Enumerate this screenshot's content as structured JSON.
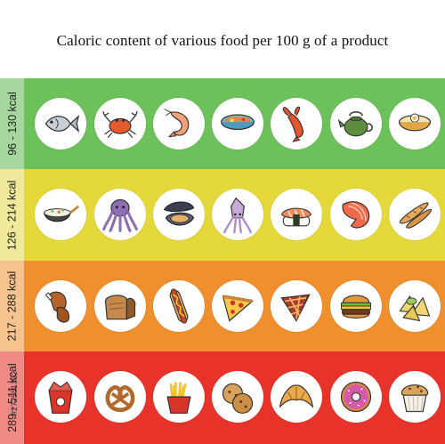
{
  "title": "Caloric content of various food per 100 g of a product",
  "stock_id": "#272581332",
  "bands": [
    {
      "label": "96 - 130 kcal",
      "main_color": "#6cc15a",
      "side_color": "#a6d79e",
      "items": [
        {
          "name": "fish",
          "icon": "fish-icon"
        },
        {
          "name": "crab",
          "icon": "crab-icon"
        },
        {
          "name": "shrimp",
          "icon": "shrimp-icon"
        },
        {
          "name": "soup",
          "icon": "soup-icon"
        },
        {
          "name": "lobster",
          "icon": "lobster-icon"
        },
        {
          "name": "teapot",
          "icon": "teapot-icon"
        },
        {
          "name": "porridge",
          "icon": "porridge-icon"
        }
      ]
    },
    {
      "label": "126 - 214 kcal",
      "main_color": "#e5d83b",
      "side_color": "#f1e99a",
      "items": [
        {
          "name": "wok",
          "icon": "wok-icon"
        },
        {
          "name": "octopus",
          "icon": "octopus-icon"
        },
        {
          "name": "mussel",
          "icon": "mussel-icon"
        },
        {
          "name": "squid",
          "icon": "squid-icon"
        },
        {
          "name": "sushi",
          "icon": "sushi-icon"
        },
        {
          "name": "salmon",
          "icon": "salmon-icon"
        },
        {
          "name": "baguette",
          "icon": "baguette-icon"
        }
      ]
    },
    {
      "label": "217 - 288 kcal",
      "main_color": "#ef8f2e",
      "side_color": "#f6c28e",
      "items": [
        {
          "name": "chicken",
          "icon": "chicken-leg-icon"
        },
        {
          "name": "bread",
          "icon": "bread-icon"
        },
        {
          "name": "hotdog",
          "icon": "hotdog-icon"
        },
        {
          "name": "pizza",
          "icon": "pizza-icon"
        },
        {
          "name": "pie",
          "icon": "pie-icon"
        },
        {
          "name": "burger",
          "icon": "burger-icon"
        },
        {
          "name": "nachos",
          "icon": "nachos-icon"
        }
      ]
    },
    {
      "label": "289 - 511 kcal",
      "main_color": "#e8332a",
      "side_color": "#f08a84",
      "items": [
        {
          "name": "noodles box",
          "icon": "noodle-box-icon"
        },
        {
          "name": "pretzel",
          "icon": "pretzel-icon"
        },
        {
          "name": "fries",
          "icon": "fries-icon"
        },
        {
          "name": "cookies",
          "icon": "cookies-icon"
        },
        {
          "name": "croissant",
          "icon": "croissant-icon"
        },
        {
          "name": "donut",
          "icon": "donut-icon"
        },
        {
          "name": "muffin",
          "icon": "muffin-icon"
        }
      ]
    }
  ]
}
